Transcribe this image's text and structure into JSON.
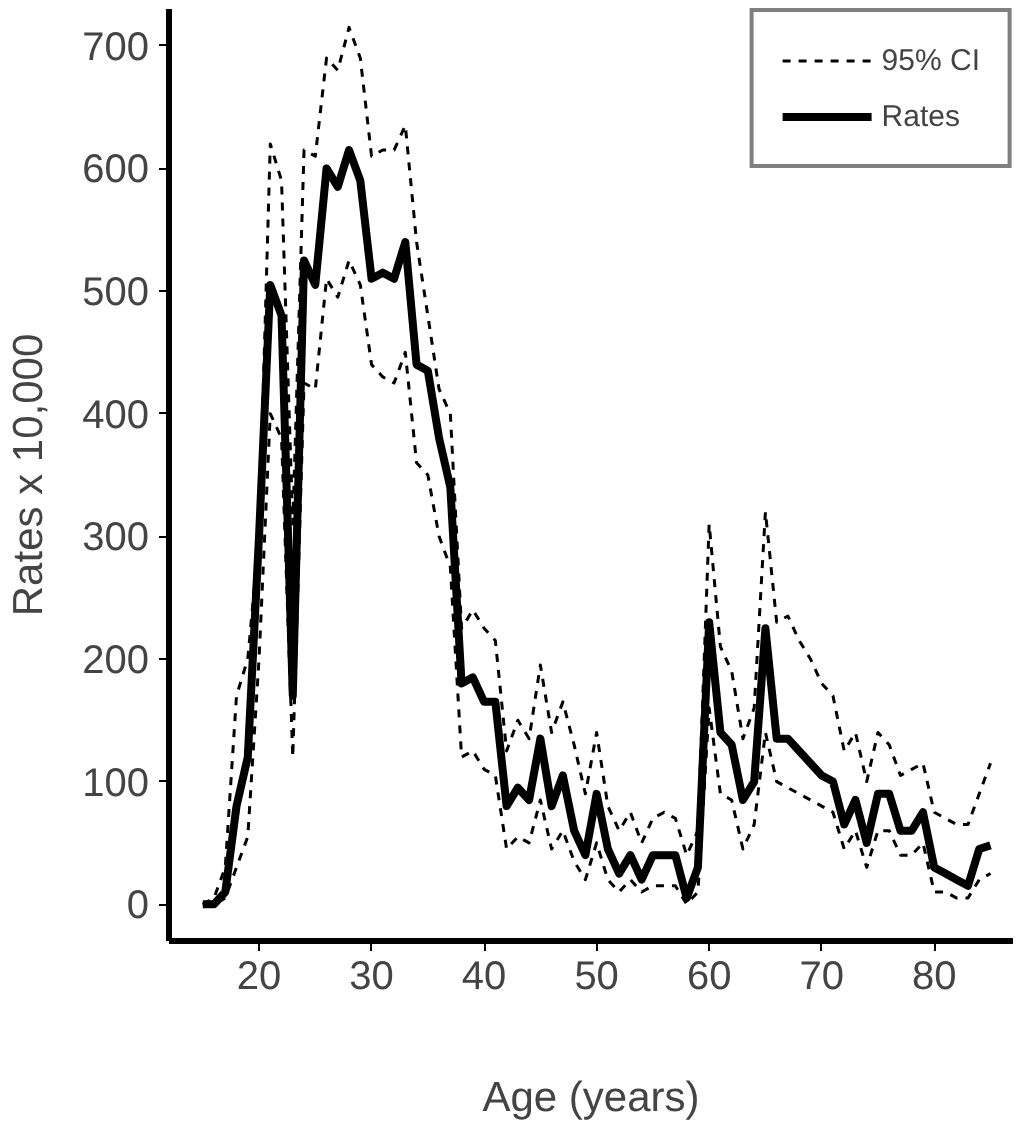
{
  "chart_data": {
    "type": "line",
    "xlabel": "Age (years)",
    "ylabel": "Rates x 10,000",
    "x": [
      15,
      16,
      17,
      18,
      19,
      20,
      21,
      22,
      23,
      24,
      25,
      26,
      27,
      28,
      29,
      30,
      31,
      32,
      33,
      34,
      35,
      36,
      37,
      38,
      39,
      40,
      41,
      42,
      43,
      44,
      45,
      46,
      47,
      48,
      49,
      50,
      51,
      52,
      53,
      54,
      55,
      56,
      57,
      58,
      59,
      60,
      61,
      62,
      63,
      64,
      65,
      66,
      67,
      68,
      69,
      70,
      71,
      72,
      73,
      74,
      75,
      76,
      77,
      78,
      79,
      80,
      81,
      82,
      83,
      84,
      85
    ],
    "series": [
      {
        "name": "95% CI",
        "color": "#000000",
        "line_style": "dashed",
        "values": [
          0,
          5,
          30,
          170,
          200,
          300,
          620,
          590,
          310,
          615,
          610,
          690,
          680,
          715,
          690,
          610,
          615,
          615,
          635,
          540,
          480,
          420,
          400,
          225,
          240,
          225,
          215,
          125,
          150,
          135,
          195,
          140,
          165,
          130,
          90,
          140,
          80,
          60,
          75,
          50,
          70,
          75,
          70,
          40,
          60,
          310,
          210,
          190,
          135,
          160,
          320,
          230,
          235,
          215,
          200,
          180,
          170,
          125,
          140,
          100,
          140,
          130,
          105,
          110,
          115,
          75,
          70,
          65,
          65,
          90,
          115
        ]
      },
      {
        "name": null,
        "color": "#000000",
        "line_style": "dashed",
        "values": [
          0,
          0,
          5,
          30,
          55,
          200,
          400,
          380,
          120,
          425,
          420,
          510,
          495,
          525,
          505,
          440,
          430,
          425,
          450,
          360,
          350,
          300,
          275,
          120,
          125,
          110,
          105,
          45,
          55,
          50,
          85,
          45,
          60,
          35,
          20,
          50,
          20,
          10,
          20,
          10,
          15,
          15,
          15,
          0,
          10,
          160,
          90,
          85,
          45,
          65,
          140,
          100,
          95,
          90,
          85,
          80,
          75,
          45,
          60,
          30,
          60,
          60,
          40,
          40,
          50,
          10,
          10,
          5,
          5,
          20,
          25
        ]
      },
      {
        "name": "Rates",
        "color": "#000000",
        "line_style": "solid",
        "values": [
          0,
          0,
          10,
          80,
          120,
          300,
          505,
          480,
          170,
          525,
          505,
          600,
          585,
          615,
          590,
          510,
          515,
          510,
          540,
          440,
          435,
          380,
          340,
          180,
          185,
          165,
          165,
          80,
          95,
          85,
          135,
          80,
          105,
          60,
          40,
          90,
          45,
          25,
          40,
          20,
          40,
          40,
          40,
          5,
          30,
          230,
          140,
          130,
          85,
          100,
          225,
          135,
          135,
          125,
          115,
          105,
          100,
          65,
          85,
          50,
          90,
          90,
          60,
          60,
          75,
          30,
          25,
          20,
          15,
          45,
          48
        ]
      }
    ],
    "xlim": [
      12,
      87
    ],
    "ylim": [
      -30,
      730
    ],
    "xticks": [
      20,
      30,
      40,
      50,
      60,
      70,
      80
    ],
    "yticks": [
      0,
      100,
      200,
      300,
      400,
      500,
      600,
      700
    ],
    "grid": false,
    "legend": "top right",
    "marker": "none"
  }
}
